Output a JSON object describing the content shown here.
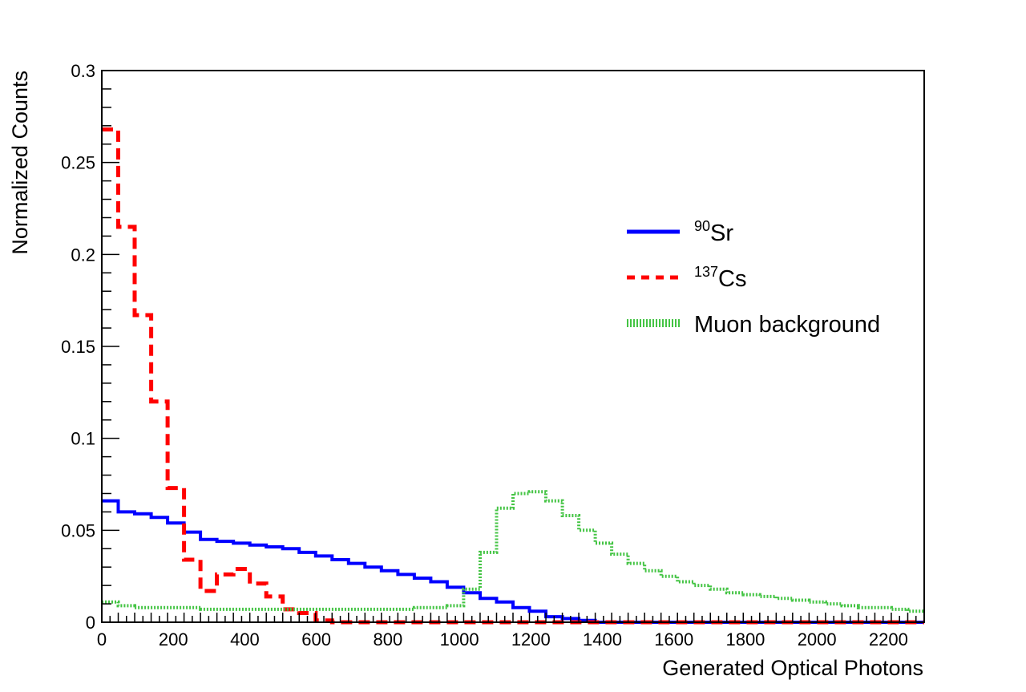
{
  "chart_data": {
    "type": "line",
    "xlabel": "Generated Optical Photons",
    "ylabel": "Normalized Counts",
    "xlim": [
      0,
      2300
    ],
    "ylim": [
      0,
      0.3
    ],
    "x_ticks": [
      0,
      200,
      400,
      600,
      800,
      1000,
      1200,
      1400,
      1600,
      1800,
      2000,
      2200
    ],
    "y_ticks": [
      0,
      0.05,
      0.1,
      0.15,
      0.2,
      0.25,
      0.3
    ],
    "x_tick_labels": [
      "0",
      "200",
      "400",
      "600",
      "800",
      "1000",
      "1200",
      "1400",
      "1600",
      "1800",
      "2000",
      "2200"
    ],
    "y_tick_labels": [
      "0",
      "0.05",
      "0.1",
      "0.15",
      "0.2",
      "0.25",
      "0.3"
    ],
    "bin_width": 46,
    "legend_position": "right",
    "grid": false,
    "series": [
      {
        "name": "Sr",
        "name_sup": "90",
        "color": "#0000ff",
        "style": "solid",
        "values": [
          0.066,
          0.06,
          0.059,
          0.057,
          0.054,
          0.049,
          0.045,
          0.044,
          0.043,
          0.042,
          0.041,
          0.04,
          0.038,
          0.036,
          0.034,
          0.032,
          0.03,
          0.028,
          0.026,
          0.024,
          0.022,
          0.019,
          0.016,
          0.013,
          0.011,
          0.008,
          0.006,
          0.003,
          0.002,
          0.001,
          0,
          0,
          0,
          0,
          0,
          0,
          0,
          0,
          0,
          0,
          0,
          0,
          0,
          0,
          0,
          0,
          0,
          0,
          0,
          0
        ]
      },
      {
        "name": "Cs",
        "name_sup": "137",
        "color": "#ff0000",
        "style": "dashed",
        "values": [
          0.268,
          0.215,
          0.167,
          0.12,
          0.073,
          0.034,
          0.017,
          0.026,
          0.029,
          0.021,
          0.014,
          0.007,
          0.005,
          0.001,
          0,
          0,
          0,
          0,
          0,
          0,
          0,
          0,
          0,
          0,
          0,
          0,
          0,
          0,
          0,
          0,
          0,
          0,
          0,
          0,
          0,
          0,
          0,
          0,
          0,
          0,
          0,
          0,
          0,
          0,
          0,
          0,
          0,
          0,
          0,
          0
        ]
      },
      {
        "name": "Muon background",
        "color": "#44c444",
        "style": "dotted",
        "values": [
          0.011,
          0.009,
          0.008,
          0.008,
          0.008,
          0.008,
          0.007,
          0.007,
          0.007,
          0.007,
          0.007,
          0.007,
          0.007,
          0.007,
          0.007,
          0.007,
          0.007,
          0.007,
          0.007,
          0.008,
          0.008,
          0.009,
          0.018,
          0.038,
          0.062,
          0.07,
          0.071,
          0.066,
          0.058,
          0.05,
          0.043,
          0.037,
          0.032,
          0.028,
          0.025,
          0.022,
          0.02,
          0.018,
          0.016,
          0.015,
          0.014,
          0.013,
          0.012,
          0.011,
          0.01,
          0.009,
          0.008,
          0.008,
          0.007,
          0.006
        ]
      }
    ]
  }
}
